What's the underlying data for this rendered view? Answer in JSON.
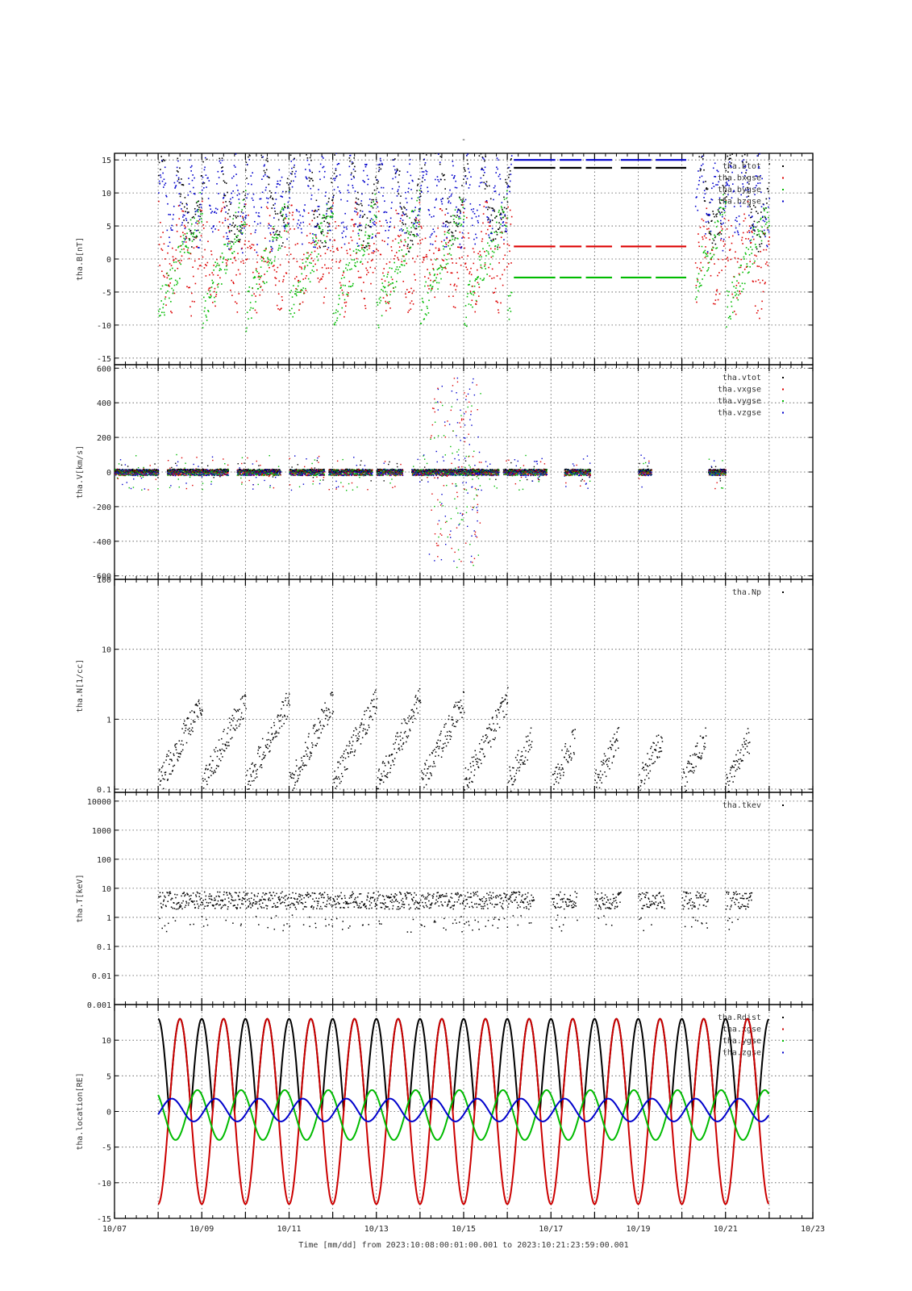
{
  "page": {
    "title_mark": "-",
    "time_axis_label": "Time [mm/dd]  from 2023:10:08:00:01:00.001  to  2023:10:21:23:59:00.001"
  },
  "x_axis": {
    "start_day": 7,
    "end_day": 23,
    "tick_labels": [
      "10/07",
      "10/09",
      "10/11",
      "10/13",
      "10/15",
      "10/17",
      "10/19",
      "10/21",
      "10/23"
    ],
    "tick_days": [
      7,
      9,
      11,
      13,
      15,
      17,
      19,
      21,
      23
    ]
  },
  "chart_data": [
    {
      "type": "scatter",
      "ylabel": "tha.B[nT]",
      "ylim": [
        -16,
        16
      ],
      "yticks": [
        -15,
        -10,
        -5,
        0,
        5,
        10,
        15
      ],
      "log": false,
      "series": [
        {
          "name": "tha.btot",
          "color": "#000000"
        },
        {
          "name": "tha.bxgse",
          "color": "#dd0000"
        },
        {
          "name": "tha.bygse",
          "color": "#00bb00"
        },
        {
          "name": "tha.bzgse",
          "color": "#0000cc"
        }
      ]
    },
    {
      "type": "scatter",
      "ylabel": "tha.V[km/s]",
      "ylim": [
        -620,
        620
      ],
      "yticks": [
        -600,
        -400,
        -200,
        0,
        200,
        400,
        600
      ],
      "log": false,
      "series": [
        {
          "name": "tha.vtot",
          "color": "#000000"
        },
        {
          "name": "tha.vxgse",
          "color": "#dd0000"
        },
        {
          "name": "tha.vygse",
          "color": "#00bb00"
        },
        {
          "name": "tha.vzgse",
          "color": "#0000cc"
        }
      ]
    },
    {
      "type": "scatter",
      "ylabel": "tha.N[1/cc]",
      "ylim": [
        0.09,
        100
      ],
      "yticks": [
        0.1,
        1,
        10,
        100
      ],
      "ytick_labels": [
        "0.1",
        "1",
        "10",
        "100"
      ],
      "log": true,
      "series": [
        {
          "name": "tha.Np",
          "color": "#000000"
        }
      ]
    },
    {
      "type": "scatter",
      "ylabel": "tha.T[keV]",
      "ylim": [
        0.001,
        20000
      ],
      "yticks": [
        0.001,
        0.01,
        0.1,
        1,
        10,
        100,
        1000,
        10000
      ],
      "ytick_labels": [
        "0.001",
        "0.01",
        "0.1",
        "1",
        "10",
        "100",
        "1000",
        "10000"
      ],
      "log": true,
      "series": [
        {
          "name": "tha.tkev",
          "color": "#000000"
        }
      ]
    },
    {
      "type": "line",
      "ylabel": "tha.location[RE]",
      "ylim": [
        -15,
        15
      ],
      "yticks": [
        -15,
        -10,
        -5,
        0,
        5,
        10
      ],
      "log": false,
      "orbit_period_days": 1.0,
      "orbit_start_day": 8.0,
      "orbit_end_day": 22.0,
      "series": [
        {
          "name": "tha.Rdist",
          "color": "#000000"
        },
        {
          "name": "tha.xgse",
          "color": "#cc0000"
        },
        {
          "name": "tha.ygse",
          "color": "#00bb00"
        },
        {
          "name": "tha.zgse",
          "color": "#0000cc"
        }
      ]
    }
  ]
}
